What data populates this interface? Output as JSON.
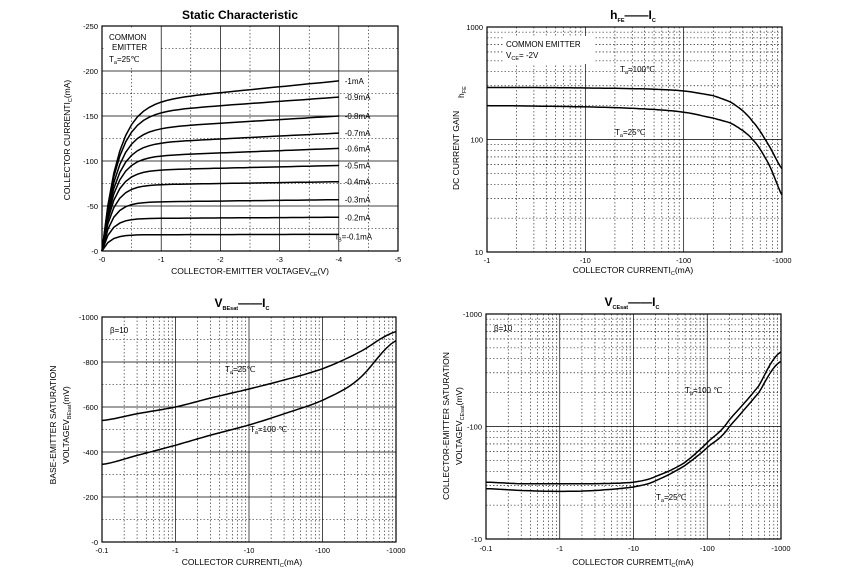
{
  "chart_data": [
    {
      "type": "line",
      "title": "Static Characteristic",
      "xlabel": "COLLECTOR-EMITTER VOLTAGE",
      "xlabel_symbol": "V",
      "xlabel_sub": "CE",
      "xlabel_unit": "(V)",
      "ylabel": "COLLECTOR CURRENT",
      "ylabel_symbol": "I",
      "ylabel_sub": "C",
      "ylabel_unit": "(mA)",
      "xlim": [
        0,
        -5
      ],
      "ylim": [
        0,
        -250
      ],
      "xticks": [
        0,
        -1,
        -2,
        -3,
        -4,
        -5
      ],
      "xtick_labels": [
        "-0",
        "-1",
        "-2",
        "-3",
        "-4",
        "-5"
      ],
      "yticks": [
        0,
        -50,
        -100,
        -150,
        -200,
        -250
      ],
      "ytick_labels": [
        "-0",
        "-50",
        "-100",
        "-150",
        "-200",
        "-250"
      ],
      "annotation": [
        "COMMON",
        "EMITTER",
        "T",
        "a",
        "=25℃"
      ],
      "series": [
        {
          "name": "-0.1mA",
          "label_main": "=-0.1mA",
          "label_prefix": "I",
          "label_sub": "B",
          "sat": 18,
          "end": 18.5
        },
        {
          "name": "-0.2mA",
          "label_main": "-0.2mA",
          "sat": 36,
          "end": 37.5
        },
        {
          "name": "-0.3mA",
          "label_main": "-0.3mA",
          "sat": 54,
          "end": 57
        },
        {
          "name": "-0.4mA",
          "label_main": "-0.4mA",
          "sat": 73,
          "end": 77
        },
        {
          "name": "-0.5mA",
          "label_main": "-0.5mA",
          "sat": 89,
          "end": 95
        },
        {
          "name": "-0.6mA",
          "label_main": "-0.6mA",
          "sat": 104,
          "end": 114
        },
        {
          "name": "-0.7mA",
          "label_main": "-0.7mA",
          "sat": 118,
          "end": 131
        },
        {
          "name": "-0.8mA",
          "label_main": "-0.8mA",
          "sat": 134,
          "end": 150
        },
        {
          "name": "-0.9mA",
          "label_main": "-0.9mA",
          "sat": 152,
          "end": 171
        },
        {
          "name": "-1mA",
          "label_main": "-1mA",
          "sat": 163,
          "end": 189
        }
      ]
    },
    {
      "type": "line",
      "title_main": "h",
      "title_sub": "FE",
      "title_dash": "——",
      "title_end": "I",
      "title_end_sub": "C",
      "xlabel": "COLLECTOR CURRENT",
      "xlabel_symbol": "I",
      "xlabel_sub": "C",
      "xlabel_unit": "(mA)",
      "ylabel": "DC CURRENT GAIN",
      "ylabel_symbol": "h",
      "ylabel_sub": "FE",
      "xscale": "log",
      "yscale": "log",
      "xlim": [
        -1,
        -1000
      ],
      "ylim": [
        10,
        1000
      ],
      "xticks": [
        1,
        10,
        100,
        1000
      ],
      "xtick_labels": [
        "-1",
        "-10",
        "-100",
        "-1000"
      ],
      "yticks": [
        10,
        100,
        1000
      ],
      "ytick_labels": [
        "10",
        "100",
        "1000"
      ],
      "annotation": [
        "COMMON EMITTER",
        "V",
        "CE",
        "= -2V"
      ],
      "series": [
        {
          "name": "Ta=100℃",
          "label_main": "T",
          "label_sub": "a",
          "label_end": "=100℃",
          "x": [
            1,
            2,
            5,
            10,
            20,
            50,
            100,
            200,
            300,
            400,
            500,
            700,
            1000
          ],
          "y": [
            290,
            290,
            289,
            287,
            285,
            280,
            270,
            245,
            215,
            180,
            145,
            95,
            55
          ]
        },
        {
          "name": "Ta=25℃",
          "label_main": "T",
          "label_sub": "a",
          "label_end": "=25℃",
          "x": [
            1,
            2,
            5,
            10,
            20,
            50,
            100,
            200,
            300,
            400,
            500,
            700,
            1000
          ],
          "y": [
            200,
            199,
            197,
            195,
            192,
            185,
            175,
            155,
            140,
            120,
            100,
            65,
            32
          ]
        }
      ]
    },
    {
      "type": "line",
      "title_main": "V",
      "title_sub": "BEsat",
      "title_dash": "——",
      "title_end": "I",
      "title_end_sub": "C",
      "xlabel": "COLLECTOR CURRENT",
      "xlabel_symbol": "I",
      "xlabel_sub": "C",
      "xlabel_unit": "(mA)",
      "ylabel": "BASE-EMITTER SATURATION",
      "ylabel2": "VOLTAGE",
      "ylabel_symbol": "V",
      "ylabel_sub": "BEsat",
      "ylabel_unit": "(mV)",
      "xscale": "log",
      "xlim": [
        -0.1,
        -1000
      ],
      "ylim": [
        0,
        -1000
      ],
      "xticks": [
        0.1,
        1,
        10,
        100,
        1000
      ],
      "xtick_labels": [
        "-0.1",
        "-1",
        "-10",
        "-100",
        "-1000"
      ],
      "yticks": [
        0,
        200,
        400,
        600,
        800,
        1000
      ],
      "ytick_labels": [
        "-0",
        "-200",
        "-400",
        "-600",
        "-800",
        "-1000"
      ],
      "annotation": [
        "β=10"
      ],
      "series": [
        {
          "name": "Ta=25℃",
          "label_main": "T",
          "label_sub": "a",
          "label_end": "=25℃",
          "x": [
            0.1,
            0.3,
            1,
            3,
            10,
            30,
            100,
            300,
            1000
          ],
          "y": [
            540,
            570,
            600,
            640,
            680,
            720,
            770,
            840,
            935
          ]
        },
        {
          "name": "Ta=100℃",
          "label_main": "T",
          "label_sub": "a",
          "label_end": "=100 ℃",
          "x": [
            0.1,
            0.3,
            1,
            3,
            10,
            30,
            100,
            300,
            1000
          ],
          "y": [
            345,
            385,
            430,
            475,
            520,
            570,
            630,
            720,
            895
          ]
        }
      ]
    },
    {
      "type": "line",
      "title_main": "V",
      "title_sub": "CEsat",
      "title_dash": "——",
      "title_end": "I",
      "title_end_sub": "C",
      "xlabel": "COLLECTOR CURREMT",
      "xlabel_symbol": "I",
      "xlabel_sub": "C",
      "xlabel_unit": "(mA)",
      "ylabel": "COLLECTOR-EMITTER SATURATION",
      "ylabel2": "VOLTAGE",
      "ylabel_symbol": "V",
      "ylabel_sub": "CEsat",
      "ylabel_unit": "(mV)",
      "xscale": "log",
      "yscale": "log",
      "xlim": [
        -0.1,
        -1000
      ],
      "ylim": [
        -10,
        -1000
      ],
      "xticks": [
        0.1,
        1,
        10,
        100,
        1000
      ],
      "xtick_labels": [
        "-0.1",
        "-1",
        "-10",
        "-100",
        "-1000"
      ],
      "yticks": [
        10,
        100,
        1000
      ],
      "ytick_labels": [
        "-10",
        "-100",
        "-1000"
      ],
      "annotation": [
        "β=10"
      ],
      "series": [
        {
          "name": "Ta=100℃",
          "label_main": "T",
          "label_sub": "a",
          "label_end": "=100 ℃",
          "x": [
            0.1,
            0.3,
            1,
            3,
            10,
            20,
            50,
            100,
            200,
            500,
            1000
          ],
          "y": [
            28,
            27,
            26.5,
            27,
            29,
            33,
            45,
            65,
            100,
            200,
            380
          ]
        },
        {
          "name": "Ta=25℃",
          "label_main": "T",
          "label_sub": "a",
          "label_end": "=25℃",
          "x": [
            0.1,
            0.3,
            1,
            3,
            10,
            20,
            50,
            100,
            200,
            500,
            1000
          ],
          "y": [
            32,
            31,
            31,
            31,
            32,
            36,
            48,
            72,
            115,
            230,
            460
          ]
        }
      ]
    }
  ]
}
